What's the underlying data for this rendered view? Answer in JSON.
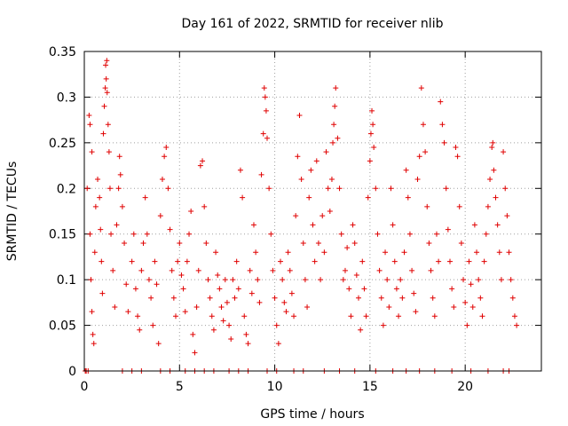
{
  "chart_data": {
    "type": "scatter",
    "title": "Day 161 of 2022, SRMTID for receiver nlib",
    "xlabel": "GPS time / hours",
    "ylabel": "SRMTID / TECUs",
    "xlim": [
      0,
      24
    ],
    "ylim": [
      0,
      0.35
    ],
    "xticks": [
      0,
      5,
      10,
      15,
      20
    ],
    "xtick_labels": [
      "0",
      "5",
      "10",
      "15",
      "20"
    ],
    "yticks": [
      0,
      0.05,
      0.1,
      0.15,
      0.2,
      0.25,
      0.3,
      0.35
    ],
    "ytick_labels": [
      "0",
      "0.05",
      "0.1",
      "0.15",
      "0.2",
      "0.25",
      "0.3",
      "0.35"
    ],
    "grid": true,
    "marker": "+",
    "series": [
      {
        "name": "SRMTID",
        "color": "#e00000",
        "points": [
          [
            0.05,
            0.0
          ],
          [
            0.1,
            0.0
          ],
          [
            0.2,
            0.0
          ],
          [
            0.15,
            0.2
          ],
          [
            0.25,
            0.28
          ],
          [
            0.3,
            0.27
          ],
          [
            0.4,
            0.24
          ],
          [
            0.3,
            0.15
          ],
          [
            0.35,
            0.1
          ],
          [
            0.4,
            0.065
          ],
          [
            0.45,
            0.04
          ],
          [
            0.5,
            0.03
          ],
          [
            0.55,
            0.13
          ],
          [
            0.6,
            0.18
          ],
          [
            0.7,
            0.21
          ],
          [
            0.8,
            0.19
          ],
          [
            0.85,
            0.155
          ],
          [
            0.9,
            0.12
          ],
          [
            0.95,
            0.085
          ],
          [
            1.0,
            0.26
          ],
          [
            1.05,
            0.29
          ],
          [
            1.1,
            0.31
          ],
          [
            1.12,
            0.335
          ],
          [
            1.15,
            0.32
          ],
          [
            1.18,
            0.34
          ],
          [
            1.2,
            0.305
          ],
          [
            1.25,
            0.27
          ],
          [
            1.3,
            0.24
          ],
          [
            1.35,
            0.2
          ],
          [
            1.4,
            0.15
          ],
          [
            1.5,
            0.11
          ],
          [
            1.6,
            0.07
          ],
          [
            1.7,
            0.16
          ],
          [
            1.8,
            0.2
          ],
          [
            1.85,
            0.235
          ],
          [
            1.9,
            0.215
          ],
          [
            2.0,
            0.18
          ],
          [
            2.1,
            0.14
          ],
          [
            2.2,
            0.095
          ],
          [
            2.3,
            0.065
          ],
          [
            2.5,
            0.12
          ],
          [
            2.6,
            0.15
          ],
          [
            2.7,
            0.09
          ],
          [
            2.8,
            0.06
          ],
          [
            2.9,
            0.045
          ],
          [
            3.0,
            0.11
          ],
          [
            3.1,
            0.14
          ],
          [
            3.2,
            0.19
          ],
          [
            3.3,
            0.15
          ],
          [
            3.4,
            0.1
          ],
          [
            3.5,
            0.08
          ],
          [
            3.6,
            0.05
          ],
          [
            3.7,
            0.12
          ],
          [
            3.8,
            0.095
          ],
          [
            3.9,
            0.03
          ],
          [
            4.0,
            0.17
          ],
          [
            4.1,
            0.21
          ],
          [
            4.2,
            0.235
          ],
          [
            4.3,
            0.245
          ],
          [
            4.4,
            0.2
          ],
          [
            4.5,
            0.155
          ],
          [
            4.6,
            0.11
          ],
          [
            4.7,
            0.08
          ],
          [
            4.8,
            0.06
          ],
          [
            4.9,
            0.12
          ],
          [
            5.0,
            0.14
          ],
          [
            5.1,
            0.105
          ],
          [
            5.2,
            0.09
          ],
          [
            5.3,
            0.065
          ],
          [
            5.4,
            0.12
          ],
          [
            5.5,
            0.15
          ],
          [
            5.6,
            0.175
          ],
          [
            5.7,
            0.04
          ],
          [
            5.8,
            0.02
          ],
          [
            5.9,
            0.07
          ],
          [
            6.0,
            0.11
          ],
          [
            6.1,
            0.225
          ],
          [
            6.2,
            0.23
          ],
          [
            6.3,
            0.18
          ],
          [
            6.4,
            0.14
          ],
          [
            6.5,
            0.1
          ],
          [
            6.6,
            0.08
          ],
          [
            6.7,
            0.06
          ],
          [
            6.8,
            0.045
          ],
          [
            6.9,
            0.13
          ],
          [
            7.0,
            0.105
          ],
          [
            7.1,
            0.09
          ],
          [
            7.2,
            0.07
          ],
          [
            7.3,
            0.055
          ],
          [
            7.4,
            0.1
          ],
          [
            7.5,
            0.075
          ],
          [
            7.6,
            0.05
          ],
          [
            7.7,
            0.035
          ],
          [
            7.8,
            0.1
          ],
          [
            7.9,
            0.08
          ],
          [
            8.0,
            0.12
          ],
          [
            8.1,
            0.09
          ],
          [
            8.2,
            0.22
          ],
          [
            8.3,
            0.19
          ],
          [
            8.4,
            0.06
          ],
          [
            8.5,
            0.04
          ],
          [
            8.6,
            0.03
          ],
          [
            8.7,
            0.11
          ],
          [
            8.8,
            0.085
          ],
          [
            8.9,
            0.16
          ],
          [
            9.0,
            0.13
          ],
          [
            9.1,
            0.1
          ],
          [
            9.2,
            0.075
          ],
          [
            9.3,
            0.215
          ],
          [
            9.4,
            0.26
          ],
          [
            9.45,
            0.31
          ],
          [
            9.5,
            0.3
          ],
          [
            9.55,
            0.285
          ],
          [
            9.6,
            0.255
          ],
          [
            9.7,
            0.2
          ],
          [
            9.8,
            0.15
          ],
          [
            9.9,
            0.11
          ],
          [
            10.0,
            0.08
          ],
          [
            10.1,
            0.05
          ],
          [
            10.2,
            0.03
          ],
          [
            10.3,
            0.12
          ],
          [
            10.4,
            0.1
          ],
          [
            10.5,
            0.075
          ],
          [
            10.6,
            0.065
          ],
          [
            10.7,
            0.13
          ],
          [
            10.8,
            0.11
          ],
          [
            10.9,
            0.085
          ],
          [
            11.0,
            0.06
          ],
          [
            11.1,
            0.17
          ],
          [
            11.2,
            0.235
          ],
          [
            11.3,
            0.28
          ],
          [
            11.4,
            0.21
          ],
          [
            11.5,
            0.14
          ],
          [
            11.6,
            0.1
          ],
          [
            11.7,
            0.07
          ],
          [
            11.8,
            0.19
          ],
          [
            11.9,
            0.22
          ],
          [
            12.0,
            0.16
          ],
          [
            12.1,
            0.12
          ],
          [
            12.2,
            0.23
          ],
          [
            12.3,
            0.14
          ],
          [
            12.4,
            0.1
          ],
          [
            12.5,
            0.17
          ],
          [
            12.6,
            0.13
          ],
          [
            12.7,
            0.24
          ],
          [
            12.8,
            0.2
          ],
          [
            12.9,
            0.175
          ],
          [
            13.0,
            0.21
          ],
          [
            13.05,
            0.25
          ],
          [
            13.1,
            0.27
          ],
          [
            13.15,
            0.29
          ],
          [
            13.2,
            0.31
          ],
          [
            13.3,
            0.255
          ],
          [
            13.4,
            0.2
          ],
          [
            13.5,
            0.15
          ],
          [
            13.6,
            0.1
          ],
          [
            13.7,
            0.11
          ],
          [
            13.8,
            0.135
          ],
          [
            13.9,
            0.09
          ],
          [
            14.0,
            0.06
          ],
          [
            14.1,
            0.16
          ],
          [
            14.2,
            0.14
          ],
          [
            14.3,
            0.105
          ],
          [
            14.4,
            0.08
          ],
          [
            14.5,
            0.045
          ],
          [
            14.6,
            0.12
          ],
          [
            14.7,
            0.09
          ],
          [
            14.8,
            0.06
          ],
          [
            14.9,
            0.19
          ],
          [
            15.0,
            0.23
          ],
          [
            15.05,
            0.26
          ],
          [
            15.1,
            0.285
          ],
          [
            15.15,
            0.27
          ],
          [
            15.2,
            0.245
          ],
          [
            15.3,
            0.2
          ],
          [
            15.4,
            0.15
          ],
          [
            15.5,
            0.11
          ],
          [
            15.6,
            0.08
          ],
          [
            15.7,
            0.05
          ],
          [
            15.8,
            0.13
          ],
          [
            15.9,
            0.1
          ],
          [
            16.0,
            0.07
          ],
          [
            16.1,
            0.2
          ],
          [
            16.2,
            0.16
          ],
          [
            16.3,
            0.12
          ],
          [
            16.4,
            0.09
          ],
          [
            16.5,
            0.06
          ],
          [
            16.6,
            0.1
          ],
          [
            16.7,
            0.08
          ],
          [
            16.8,
            0.13
          ],
          [
            16.9,
            0.22
          ],
          [
            17.0,
            0.19
          ],
          [
            17.1,
            0.15
          ],
          [
            17.2,
            0.11
          ],
          [
            17.3,
            0.085
          ],
          [
            17.4,
            0.065
          ],
          [
            17.5,
            0.21
          ],
          [
            17.6,
            0.235
          ],
          [
            17.7,
            0.31
          ],
          [
            17.8,
            0.27
          ],
          [
            17.9,
            0.24
          ],
          [
            18.0,
            0.18
          ],
          [
            18.1,
            0.14
          ],
          [
            18.2,
            0.11
          ],
          [
            18.3,
            0.08
          ],
          [
            18.4,
            0.06
          ],
          [
            18.5,
            0.15
          ],
          [
            18.6,
            0.12
          ],
          [
            18.7,
            0.295
          ],
          [
            18.8,
            0.27
          ],
          [
            18.9,
            0.25
          ],
          [
            19.0,
            0.2
          ],
          [
            19.1,
            0.155
          ],
          [
            19.2,
            0.12
          ],
          [
            19.3,
            0.09
          ],
          [
            19.4,
            0.07
          ],
          [
            19.5,
            0.245
          ],
          [
            19.6,
            0.235
          ],
          [
            19.7,
            0.18
          ],
          [
            19.8,
            0.14
          ],
          [
            19.9,
            0.1
          ],
          [
            20.0,
            0.075
          ],
          [
            20.1,
            0.05
          ],
          [
            20.2,
            0.12
          ],
          [
            20.3,
            0.095
          ],
          [
            20.4,
            0.07
          ],
          [
            20.5,
            0.16
          ],
          [
            20.6,
            0.13
          ],
          [
            20.7,
            0.1
          ],
          [
            20.8,
            0.08
          ],
          [
            20.9,
            0.06
          ],
          [
            21.0,
            0.12
          ],
          [
            21.1,
            0.15
          ],
          [
            21.2,
            0.18
          ],
          [
            21.3,
            0.21
          ],
          [
            21.4,
            0.245
          ],
          [
            21.45,
            0.25
          ],
          [
            21.5,
            0.22
          ],
          [
            21.6,
            0.19
          ],
          [
            21.7,
            0.16
          ],
          [
            21.8,
            0.13
          ],
          [
            21.9,
            0.1
          ],
          [
            22.0,
            0.24
          ],
          [
            22.1,
            0.2
          ],
          [
            22.2,
            0.17
          ],
          [
            22.3,
            0.13
          ],
          [
            22.4,
            0.1
          ],
          [
            22.5,
            0.08
          ],
          [
            22.6,
            0.06
          ],
          [
            22.7,
            0.05
          ],
          [
            2.0,
            0.0
          ],
          [
            2.5,
            0.0
          ],
          [
            3.0,
            0.0
          ],
          [
            4.0,
            0.0
          ],
          [
            4.5,
            0.0
          ],
          [
            5.3,
            0.0
          ],
          [
            5.8,
            0.0
          ],
          [
            6.3,
            0.0
          ],
          [
            6.8,
            0.0
          ],
          [
            7.6,
            0.0
          ],
          [
            8.1,
            0.0
          ],
          [
            8.6,
            0.0
          ],
          [
            9.6,
            0.0
          ],
          [
            10.1,
            0.0
          ],
          [
            11.0,
            0.0
          ],
          [
            11.5,
            0.0
          ],
          [
            12.6,
            0.0
          ],
          [
            13.4,
            0.0
          ],
          [
            14.2,
            0.0
          ],
          [
            15.3,
            0.0
          ],
          [
            16.2,
            0.0
          ],
          [
            16.9,
            0.0
          ],
          [
            17.6,
            0.0
          ],
          [
            18.4,
            0.0
          ],
          [
            19.3,
            0.0
          ],
          [
            20.3,
            0.0
          ],
          [
            21.2,
            0.0
          ],
          [
            22.0,
            0.0
          ],
          [
            22.3,
            0.0
          ]
        ]
      }
    ]
  }
}
